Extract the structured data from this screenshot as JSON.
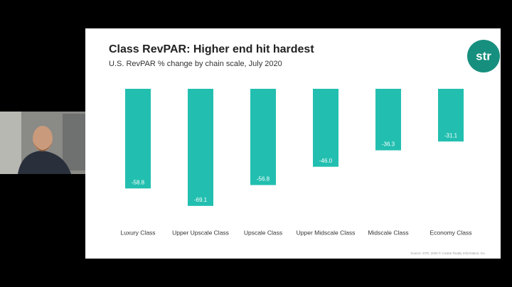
{
  "chart_data": {
    "type": "bar",
    "title": "Class RevPAR: Higher end hit hardest",
    "subtitle": "U.S. RevPAR % change by chain scale, July 2020",
    "categories": [
      "Luxury Class",
      "Upper Upscale Class",
      "Upscale Class",
      "Upper Midscale Class",
      "Midscale Class",
      "Economy Class"
    ],
    "values": [
      -58.8,
      -69.1,
      -56.8,
      -46.0,
      -36.3,
      -31.1
    ],
    "value_labels": [
      "-58.8",
      "-69.1",
      "-56.8",
      "-46.0",
      "-36.3",
      "-31.1"
    ],
    "color": "#22bfb0",
    "ylim": [
      -70,
      0
    ]
  },
  "logo": "str",
  "source": "Source: STR. 2020 © CoStar Realty Information, Inc."
}
